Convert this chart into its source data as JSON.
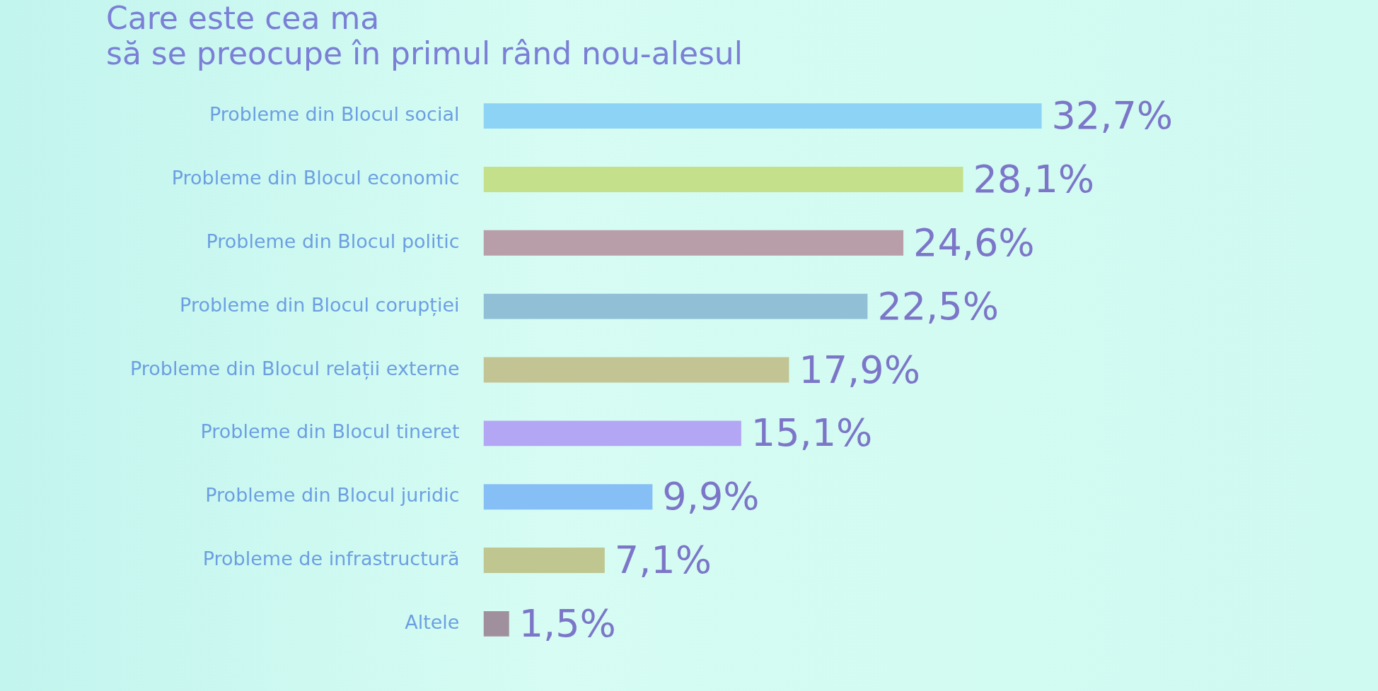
{
  "chart_data": {
    "type": "bar",
    "orientation": "horizontal",
    "title": "Care este cea ma\nsă se preocupe în primul rând nou-alesul",
    "categories": [
      "Probleme din Blocul social",
      "Probleme din Blocul economic",
      "Probleme din Blocul politic",
      "Probleme din Blocul corupției",
      "Probleme din Blocul relații externe",
      "Probleme din Blocul tineret",
      "Probleme din Blocul juridic",
      "Probleme de infrastructură",
      "Altele"
    ],
    "values": [
      32.7,
      28.1,
      24.6,
      22.5,
      17.9,
      15.1,
      9.9,
      7.1,
      1.5
    ],
    "colors": [
      "#8dd3f5",
      "#c5e08a",
      "#b89ea8",
      "#90bfd6",
      "#c2c493",
      "#b3a6f5",
      "#86bff5",
      "#bfc690",
      "#a0909e"
    ],
    "value_labels": [
      "32,7%",
      "28,1%",
      "24,6%",
      "22,5%",
      "17,9%",
      "15,1%",
      "9,9%",
      "7,1%",
      "1,5%"
    ],
    "tick_labels": "y",
    "grid": false,
    "legend": false
  }
}
